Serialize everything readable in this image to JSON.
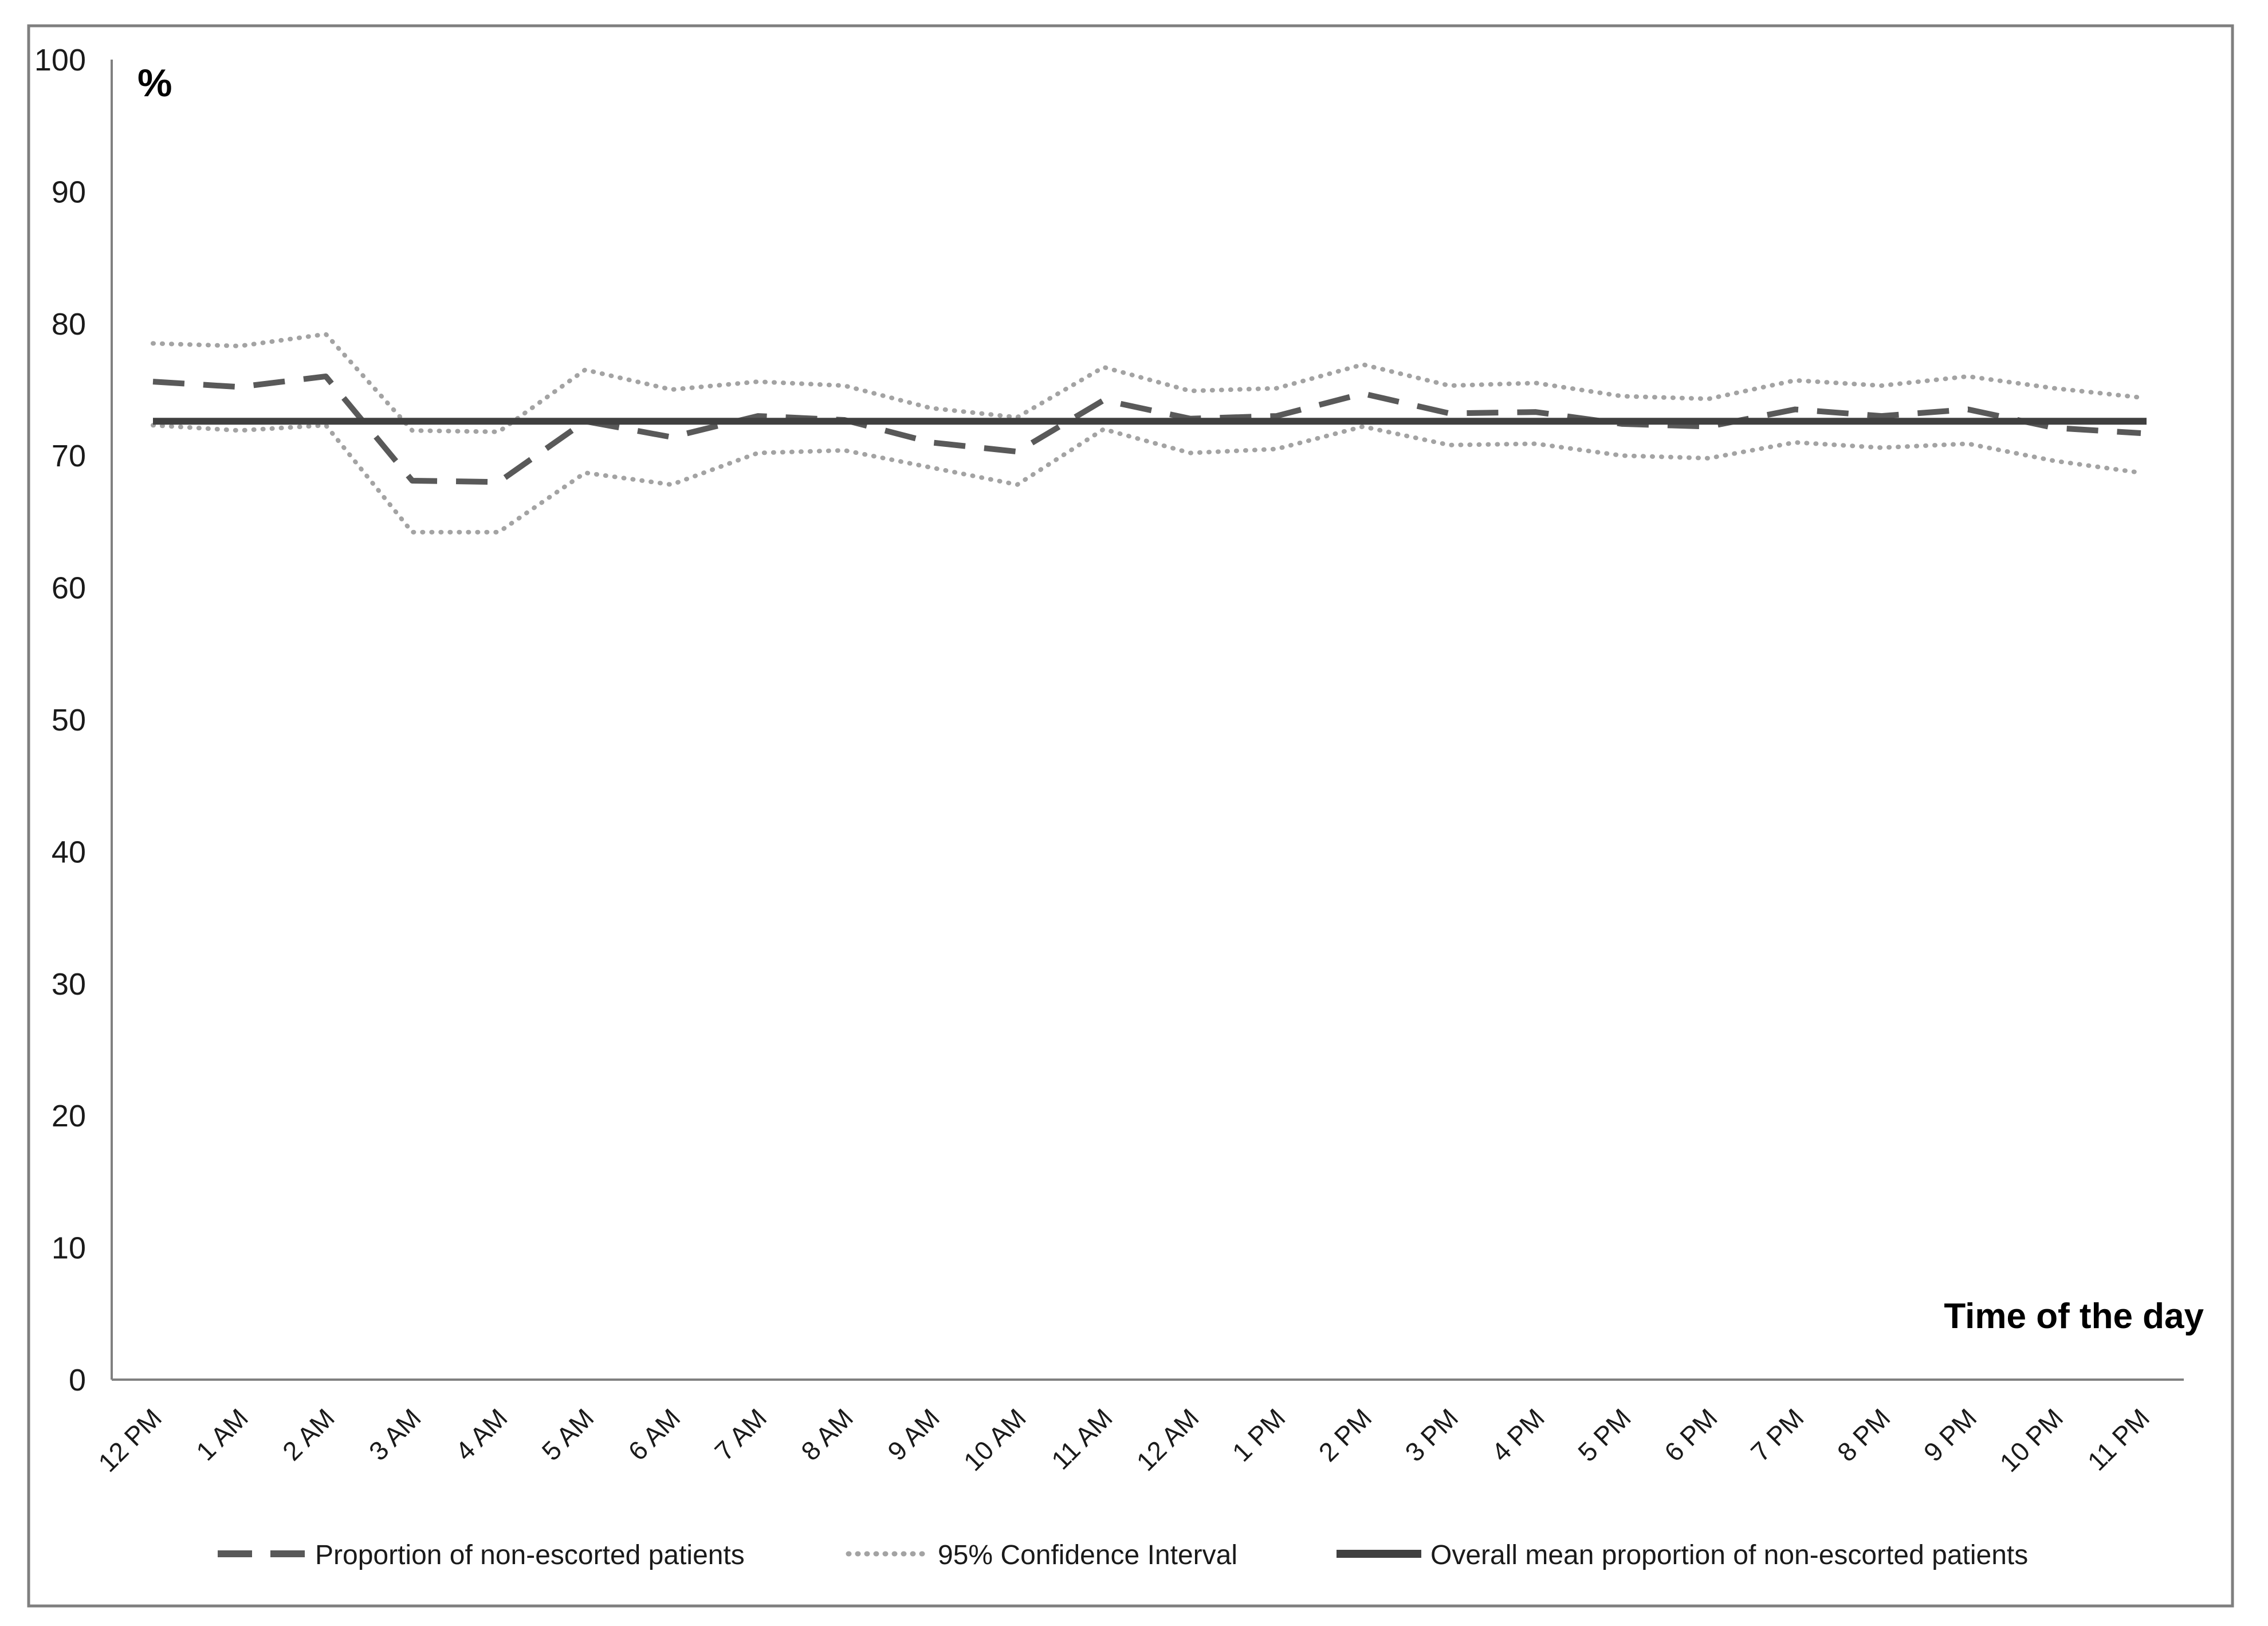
{
  "figure": {
    "y_axis_unit_label": "%",
    "x_axis_title": "Time of the day",
    "background_color": "#ffffff",
    "border_color": "#7f7f7f"
  },
  "legend": {
    "items": [
      {
        "label": "Proportion of non-escorted patients",
        "style": "dashed",
        "color": "#595959"
      },
      {
        "label": "95% Confidence Interval",
        "style": "dotted",
        "color": "#a3a3a3"
      },
      {
        "label": "Overall mean proportion of non-escorted patients",
        "style": "solid",
        "color": "#404040"
      }
    ]
  },
  "chart_data": {
    "type": "line",
    "title": "",
    "xlabel": "Time of the day",
    "ylabel": "%",
    "ylim": [
      0,
      100
    ],
    "yticks": [
      0,
      10,
      20,
      30,
      40,
      50,
      60,
      70,
      80,
      90,
      100
    ],
    "grid": false,
    "legend_position": "bottom",
    "categories": [
      "12 PM",
      "1 AM",
      "2 AM",
      "3 AM",
      "4 AM",
      "5 AM",
      "6 AM",
      "7 AM",
      "8 AM",
      "9 AM",
      "10 AM",
      "11 AM",
      "12 AM",
      "1 PM",
      "2 PM",
      "3 PM",
      "4 PM",
      "5 PM",
      "6 PM",
      "7 PM",
      "8 PM",
      "9 PM",
      "10 PM",
      "11 PM"
    ],
    "series": [
      {
        "name": "Proportion of non-escorted patients",
        "style": "dashed",
        "color": "#595959",
        "values": [
          75.6,
          75.2,
          76.0,
          68.1,
          68.0,
          72.6,
          71.4,
          73.0,
          72.7,
          71.0,
          70.3,
          74.2,
          72.8,
          73.0,
          74.7,
          73.2,
          73.3,
          72.4,
          72.2,
          73.5,
          73.0,
          73.5,
          72.1,
          71.7
        ]
      },
      {
        "name": "95% Confidence Interval (upper)",
        "style": "dotted",
        "color": "#a3a3a3",
        "values": [
          78.5,
          78.3,
          79.2,
          71.9,
          71.8,
          76.5,
          75.0,
          75.6,
          75.3,
          73.6,
          72.9,
          76.7,
          74.9,
          75.1,
          76.9,
          75.3,
          75.5,
          74.5,
          74.3,
          75.7,
          75.3,
          76.0,
          75.1,
          74.4
        ]
      },
      {
        "name": "95% Confidence Interval (lower)",
        "style": "dotted",
        "color": "#a3a3a3",
        "values": [
          72.3,
          71.9,
          72.3,
          64.2,
          64.2,
          68.7,
          67.8,
          70.2,
          70.4,
          69.1,
          67.8,
          72.0,
          70.2,
          70.5,
          72.2,
          70.8,
          70.9,
          70.0,
          69.8,
          71.0,
          70.6,
          70.9,
          69.6,
          68.7
        ]
      },
      {
        "name": "Overall mean proportion of non-escorted patients",
        "style": "solid",
        "color": "#404040",
        "mean_value": 72.6
      }
    ]
  }
}
